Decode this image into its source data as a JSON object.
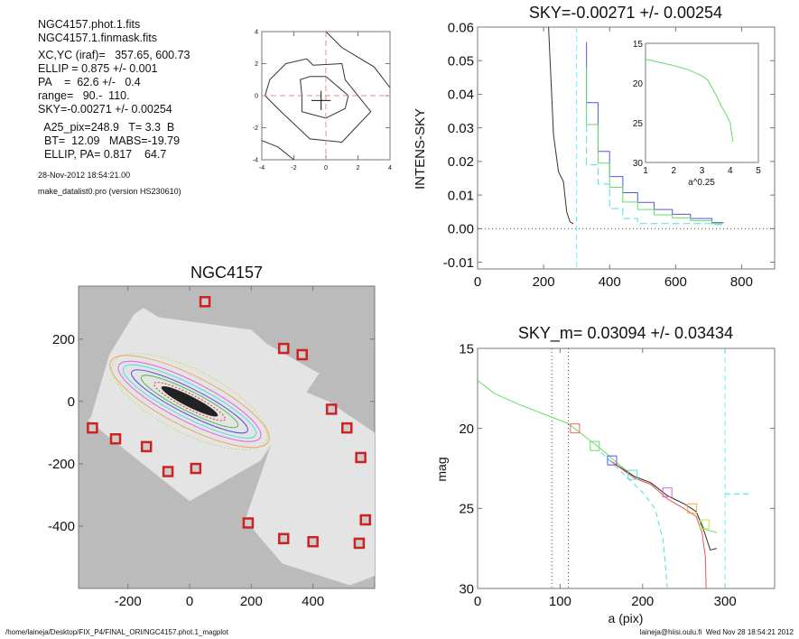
{
  "info": {
    "lines1": [
      "NGC4157.phot.1.fits",
      "NGC4157.1.finmask.fits"
    ],
    "lines2": [
      "XC,YC (iraf)=   357.65, 600.73",
      "ELLIP = 0.875 +/- 0.001",
      "PA    =  62.6 +/-   0.4",
      "range=   90.-  110.",
      "SKY=-0.00271 +/- 0.00254"
    ],
    "lines3": [
      "  A25_pix=248.9   T= 3.3  B",
      "  BT=  12.09   MABS=-19.79",
      "  ELLIP, PA= 0.817    64.7"
    ],
    "date": "28-Nov-2012 18:54:21.00",
    "program": "make_datalist0.pro (version HS230610)"
  },
  "footer": {
    "left": "/home/laineja/Desktop/FIX_P4/FINAL_ORI/NGC4157.phot.1_magplot",
    "right": "laineja@hiisi.oulu.fi  Wed Nov 28 18:54:21 2012"
  },
  "chart_data": [
    {
      "type": "line",
      "name": "center-contour",
      "xlim": [
        -4,
        4
      ],
      "ylim": [
        -4,
        4
      ],
      "xticks": [
        "-4",
        "-2",
        "0",
        "2",
        "4"
      ],
      "yticks": [
        "-4",
        "-2",
        "0",
        "2",
        "4"
      ],
      "center": [
        -0.3,
        -0.3
      ]
    },
    {
      "type": "line",
      "title": "SKY=-0.00271 +/- 0.00254",
      "ylabel": "INTENS-SKY",
      "xlim": [
        0,
        900
      ],
      "ylim": [
        -0.012,
        0.06
      ],
      "xticks": [
        "0",
        "200",
        "400",
        "600",
        "800"
      ],
      "yticks": [
        "-0.01",
        "0.00",
        "0.01",
        "0.02",
        "0.03",
        "0.04",
        "0.05",
        "0.06"
      ],
      "series": [
        {
          "name": "profile",
          "color": "#333333",
          "x": [
            215,
            230,
            245,
            260,
            270,
            280,
            290
          ],
          "y": [
            0.06,
            0.028,
            0.017,
            0.014,
            0.005,
            0.002,
            0.0015
          ]
        },
        {
          "name": "blue",
          "color": "#5555dd",
          "x": [
            330,
            365,
            400,
            440,
            485,
            535,
            590,
            645,
            710,
            745
          ],
          "y": [
            0.0555,
            0.0375,
            0.023,
            0.0155,
            0.0107,
            0.0078,
            0.0057,
            0.0043,
            0.003,
            0.0018
          ]
        },
        {
          "name": "green",
          "color": "#66dd66",
          "x": [
            330,
            365,
            400,
            440,
            485,
            535,
            590,
            645,
            710,
            745
          ],
          "y": [
            0.048,
            0.031,
            0.0195,
            0.0123,
            0.0079,
            0.0057,
            0.0041,
            0.0032,
            0.0024,
            0.0015
          ]
        },
        {
          "name": "cyan",
          "color": "#55dddd",
          "x": [
            330,
            365,
            400,
            440,
            485,
            535,
            590,
            645,
            710,
            745
          ],
          "y": [
            0.034,
            0.019,
            0.0133,
            0.006,
            0.003,
            0.0015,
            0.0015,
            0.0015,
            0.0015,
            0.0012
          ]
        }
      ],
      "inset": {
        "xlabel": "a^0.25",
        "xlim": [
          1,
          5
        ],
        "ylim": [
          15,
          30
        ],
        "xticks": [
          "1",
          "2",
          "3",
          "4",
          "5"
        ],
        "yticks": [
          "15",
          "20",
          "25",
          "30"
        ],
        "x": [
          1,
          1.5,
          2,
          2.5,
          3,
          3.2,
          3.5,
          3.7,
          3.85,
          4.0,
          4.05,
          4.1
        ],
        "y": [
          17.0,
          17.4,
          17.8,
          18.3,
          19.1,
          19.6,
          21.5,
          23.0,
          23.9,
          25.0,
          26.2,
          27.4
        ]
      }
    },
    {
      "type": "line",
      "title": "SKY_m=  0.03094 +/- 0.03434",
      "xlabel": "a (pix)",
      "ylabel": "mag",
      "xlim": [
        0,
        360
      ],
      "ylim": [
        15,
        30
      ],
      "xticks": [
        "0",
        "100",
        "200",
        "300"
      ],
      "yticks": [
        "15",
        "20",
        "25",
        "30"
      ],
      "vlines": [
        90,
        110
      ],
      "sky_x": 300,
      "series": [
        {
          "name": "green",
          "color": "#66dd66",
          "x": [
            0,
            20,
            50,
            90,
            110,
            130,
            150,
            170,
            190,
            210,
            230,
            250,
            265,
            275,
            290
          ],
          "y": [
            17.0,
            17.8,
            18.5,
            19.3,
            19.7,
            20.5,
            21.3,
            22.2,
            23.0,
            23.4,
            24.2,
            24.7,
            25.2,
            26.3,
            26.5
          ]
        },
        {
          "name": "black",
          "color": "#333333",
          "x": [
            160,
            190,
            210,
            230,
            250,
            265,
            275,
            282,
            290
          ],
          "y": [
            22.0,
            23.0,
            23.4,
            24.2,
            24.7,
            25.2,
            26.5,
            27.6,
            27.5
          ]
        },
        {
          "name": "red",
          "color": "#ee5555",
          "x": [
            160,
            190,
            210,
            230,
            250,
            265,
            272,
            276,
            277
          ],
          "y": [
            22.0,
            23.1,
            23.5,
            24.4,
            25.0,
            25.5,
            26.5,
            28.0,
            30.0
          ]
        },
        {
          "name": "cyan-dash",
          "color": "#55dddd",
          "x": [
            150,
            180,
            200,
            215,
            225,
            230
          ],
          "y": [
            21.5,
            23.0,
            24.0,
            25.0,
            27.0,
            30.0
          ]
        }
      ],
      "markers": [
        {
          "x": 118,
          "y": 20.0,
          "color": "#ee6666"
        },
        {
          "x": 142,
          "y": 21.1,
          "color": "#66dd66"
        },
        {
          "x": 163,
          "y": 22.0,
          "color": "#5555dd"
        },
        {
          "x": 188,
          "y": 22.9,
          "color": "#55dddd"
        },
        {
          "x": 230,
          "y": 24.0,
          "color": "#dd66dd"
        },
        {
          "x": 260,
          "y": 25.0,
          "color": "#eeaa55"
        },
        {
          "x": 275,
          "y": 26.0,
          "color": "#ccdd44"
        }
      ]
    },
    {
      "type": "scatter",
      "title": "NGC4157",
      "xlim": [
        -360,
        600
      ],
      "ylim": [
        -600,
        370
      ],
      "xticks": [
        "-200",
        "0",
        "200",
        "400"
      ],
      "yticks": [
        "-400",
        "-200",
        "0",
        "200"
      ],
      "markers": [
        [
          50,
          320
        ],
        [
          305,
          170
        ],
        [
          365,
          150
        ],
        [
          -315,
          -85
        ],
        [
          -240,
          -120
        ],
        [
          -140,
          -145
        ],
        [
          -70,
          -225
        ],
        [
          20,
          -215
        ],
        [
          460,
          -25
        ],
        [
          510,
          -85
        ],
        [
          555,
          -180
        ],
        [
          190,
          -390
        ],
        [
          305,
          -440
        ],
        [
          400,
          -450
        ],
        [
          570,
          -380
        ],
        [
          550,
          -455
        ]
      ]
    }
  ]
}
